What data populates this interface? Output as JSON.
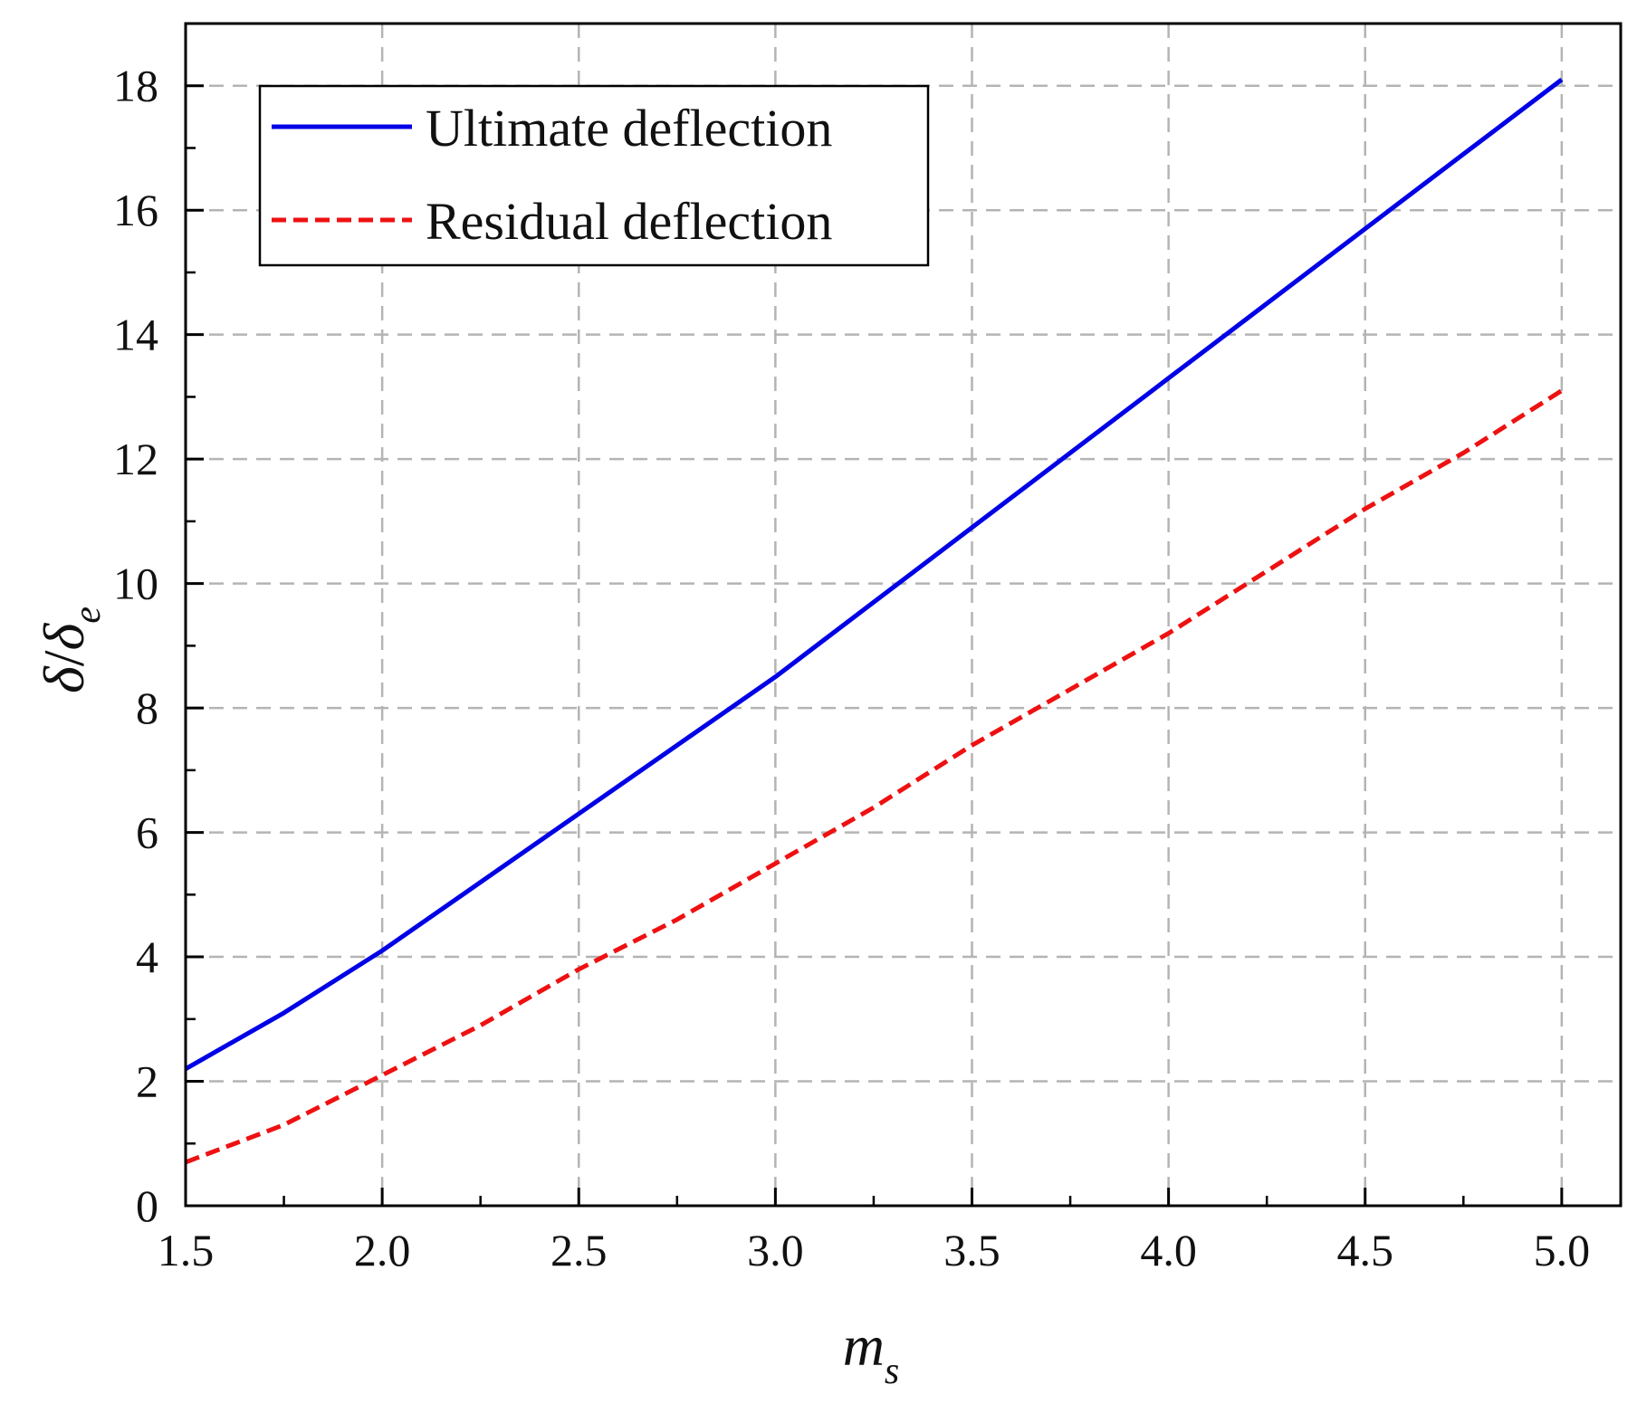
{
  "chart_data": {
    "type": "line",
    "title": "",
    "xlabel": {
      "main": "m",
      "sub": "s"
    },
    "ylabel": {
      "num": "δ",
      "slash": "/",
      "den": "δ",
      "den_sub": "e"
    },
    "xlim": [
      1.5,
      5.15
    ],
    "ylim": [
      0,
      19
    ],
    "xticks": [
      1.5,
      2.0,
      2.5,
      3.0,
      3.5,
      4.0,
      4.5,
      5.0
    ],
    "xtick_labels": [
      "1.5",
      "2.0",
      "2.5",
      "3.0",
      "3.5",
      "4.0",
      "4.5",
      "5.0"
    ],
    "yticks": [
      0,
      2,
      4,
      6,
      8,
      10,
      12,
      14,
      16,
      18
    ],
    "ytick_labels": [
      "0",
      "2",
      "4",
      "6",
      "8",
      "10",
      "12",
      "14",
      "16",
      "18"
    ],
    "grid": true,
    "legend_position": "top-left",
    "series": [
      {
        "name": "Ultimate deflection",
        "color": "#0000e6",
        "dash": "solid",
        "x": [
          1.5,
          1.75,
          2.0,
          2.25,
          2.5,
          2.75,
          3.0,
          3.25,
          3.5,
          3.75,
          4.0,
          4.25,
          4.5,
          4.75,
          5.0
        ],
        "y": [
          2.2,
          3.1,
          4.1,
          5.2,
          6.3,
          7.4,
          8.5,
          9.7,
          10.9,
          12.1,
          13.3,
          14.5,
          15.7,
          16.9,
          18.1
        ]
      },
      {
        "name": "Residual deflection",
        "color": "#ee1111",
        "dash": "dashed",
        "x": [
          1.5,
          1.75,
          2.0,
          2.25,
          2.5,
          2.75,
          3.0,
          3.25,
          3.5,
          3.75,
          4.0,
          4.25,
          4.5,
          4.75,
          5.0
        ],
        "y": [
          0.7,
          1.3,
          2.1,
          2.9,
          3.8,
          4.6,
          5.5,
          6.4,
          7.4,
          8.3,
          9.2,
          10.2,
          11.2,
          12.1,
          13.1
        ]
      }
    ]
  }
}
